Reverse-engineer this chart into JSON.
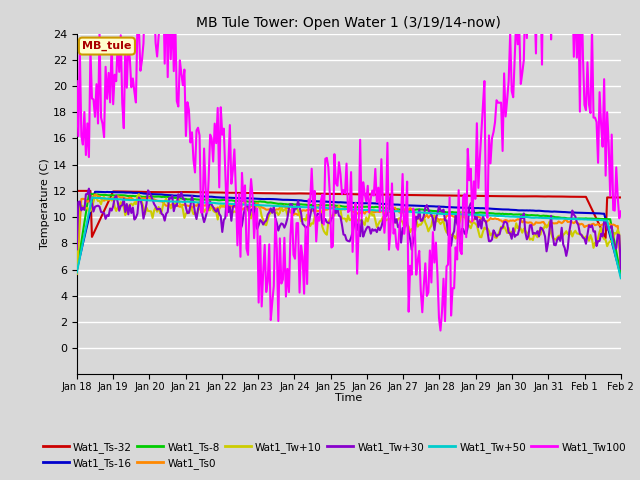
{
  "title": "MB Tule Tower: Open Water 1 (3/19/14-now)",
  "xlabel": "Time",
  "ylabel": "Temperature (C)",
  "ylim": [
    -2,
    24
  ],
  "yticks": [
    0,
    2,
    4,
    6,
    8,
    10,
    12,
    14,
    16,
    18,
    20,
    22,
    24
  ],
  "xlim": [
    0,
    15
  ],
  "xtick_labels": [
    "Jan 18",
    "Jan 19",
    "Jan 20",
    "Jan 21",
    "Jan 22",
    "Jan 23",
    "Jan 24",
    "Jan 25",
    "Jan 26",
    "Jan 27",
    "Jan 28",
    "Jan 29",
    "Jan 30",
    "Jan 31",
    "Feb 1",
    "Feb 2"
  ],
  "legend_label": "MB_tule",
  "background_color": "#d8d8d8",
  "plot_bg_color": "#d8d8d8",
  "grid_color": "#ffffff",
  "series": [
    {
      "name": "Wat1_Ts-32",
      "color": "#cc0000",
      "lw": 1.5
    },
    {
      "name": "Wat1_Ts-16",
      "color": "#0000cc",
      "lw": 1.5
    },
    {
      "name": "Wat1_Ts-8",
      "color": "#00cc00",
      "lw": 1.5
    },
    {
      "name": "Wat1_Ts0",
      "color": "#ff8800",
      "lw": 1.5
    },
    {
      "name": "Wat1_Tw+10",
      "color": "#cccc00",
      "lw": 1.5
    },
    {
      "name": "Wat1_Tw+30",
      "color": "#8800cc",
      "lw": 1.5
    },
    {
      "name": "Wat1_Tw+50",
      "color": "#00cccc",
      "lw": 1.5
    },
    {
      "name": "Wat1_Tw100",
      "color": "#ff00ff",
      "lw": 1.5
    }
  ]
}
